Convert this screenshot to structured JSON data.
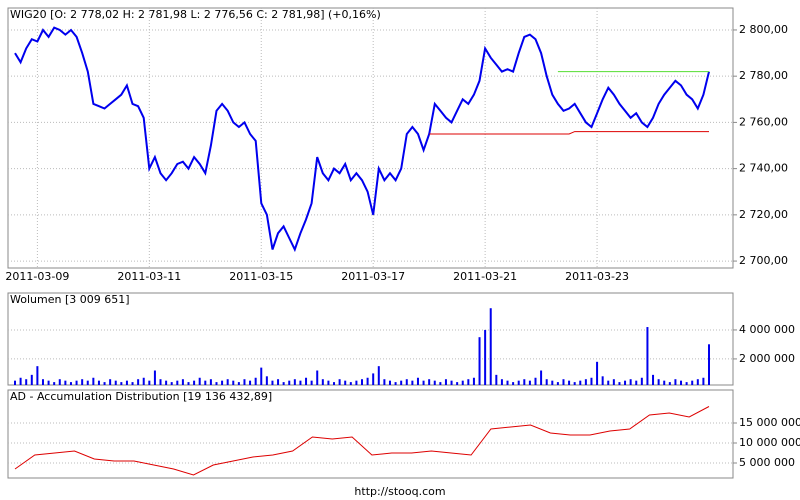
{
  "chart_data": [
    {
      "type": "line",
      "title": "WIG20 [O: 2 778,02  H: 2 781,98  L: 2 776,56  C: 2 781,98] (+0,16%)",
      "categories": [
        null,
        null,
        null,
        null,
        "2011-03-09",
        null,
        null,
        null,
        null,
        null,
        null,
        null,
        null,
        null,
        null,
        null,
        null,
        null,
        null,
        null,
        null,
        null,
        null,
        null,
        "2011-03-11",
        null,
        null,
        null,
        null,
        null,
        null,
        null,
        null,
        null,
        null,
        null,
        null,
        null,
        null,
        null,
        null,
        null,
        null,
        null,
        "2011-03-15",
        null,
        null,
        null,
        null,
        null,
        null,
        null,
        null,
        null,
        null,
        null,
        null,
        null,
        null,
        null,
        null,
        null,
        null,
        null,
        "2011-03-17",
        null,
        null,
        null,
        null,
        null,
        null,
        null,
        null,
        null,
        null,
        null,
        null,
        null,
        null,
        null,
        null,
        null,
        null,
        null,
        "2011-03-21",
        null,
        null,
        null,
        null,
        null,
        null,
        null,
        null,
        null,
        null,
        null,
        null,
        null,
        null,
        null,
        null,
        null,
        null,
        null,
        "2011-03-23",
        null,
        null,
        null,
        null,
        null,
        null,
        null,
        null,
        null,
        null,
        null,
        null,
        null,
        null,
        null,
        null,
        null,
        null,
        null,
        null
      ],
      "series": [
        {
          "color": "#0000ee",
          "values": [
            2790,
            2786,
            2792,
            2796,
            2795,
            2800,
            2797,
            2801,
            2800,
            2798,
            2800,
            2797,
            2790,
            2782,
            2768,
            2767,
            2766,
            2768,
            2770,
            2772,
            2776,
            2768,
            2767,
            2762,
            2740,
            2745,
            2738,
            2735,
            2738,
            2742,
            2743,
            2740,
            2745,
            2742,
            2738,
            2750,
            2765,
            2768,
            2765,
            2760,
            2758,
            2760,
            2755,
            2752,
            2725,
            2720,
            2705,
            2712,
            2715,
            2710,
            2705,
            2712,
            2718,
            2725,
            2745,
            2738,
            2735,
            2740,
            2738,
            2742,
            2735,
            2738,
            2735,
            2730,
            2720,
            2740,
            2735,
            2738,
            2735,
            2740,
            2755,
            2758,
            2755,
            2748,
            2755,
            2768,
            2765,
            2762,
            2760,
            2765,
            2770,
            2768,
            2772,
            2778,
            2792,
            2788,
            2785,
            2782,
            2783,
            2782,
            2790,
            2797,
            2798,
            2796,
            2790,
            2780,
            2772,
            2768,
            2765,
            2766,
            2768,
            2764,
            2760,
            2758,
            2764,
            2770,
            2775,
            2772,
            2768,
            2765,
            2762,
            2764,
            2760,
            2758,
            2762,
            2768,
            2772,
            2775,
            2778,
            2776,
            2772,
            2770,
            2766,
            2772,
            2781.98
          ]
        },
        {
          "color": "#dd0000",
          "values": [
            null,
            null,
            null,
            null,
            null,
            null,
            null,
            null,
            null,
            null,
            null,
            null,
            null,
            null,
            null,
            null,
            null,
            null,
            null,
            null,
            null,
            null,
            null,
            null,
            null,
            null,
            null,
            null,
            null,
            null,
            null,
            null,
            null,
            null,
            null,
            null,
            null,
            null,
            null,
            null,
            null,
            null,
            null,
            null,
            null,
            null,
            null,
            null,
            null,
            null,
            null,
            null,
            null,
            null,
            null,
            null,
            null,
            null,
            null,
            null,
            null,
            null,
            null,
            null,
            null,
            null,
            null,
            null,
            null,
            null,
            null,
            null,
            null,
            null,
            2755,
            2755,
            2755,
            2755,
            2755,
            2755,
            2755,
            2755,
            2755,
            2755,
            2755,
            2755,
            2755,
            2755,
            2755,
            2755,
            2755,
            2755,
            2755,
            2755,
            2755,
            2755,
            2755,
            2755,
            2755,
            2755,
            2756,
            2756,
            2756,
            2756,
            2756,
            2756,
            2756,
            2756,
            2756,
            2756,
            2756,
            2756,
            2756,
            2756,
            2756,
            2756,
            2756,
            2756,
            2756,
            2756,
            2756,
            2756,
            2756,
            2756,
            2756
          ]
        },
        {
          "color": "#55dd33",
          "values": [
            null,
            null,
            null,
            null,
            null,
            null,
            null,
            null,
            null,
            null,
            null,
            null,
            null,
            null,
            null,
            null,
            null,
            null,
            null,
            null,
            null,
            null,
            null,
            null,
            null,
            null,
            null,
            null,
            null,
            null,
            null,
            null,
            null,
            null,
            null,
            null,
            null,
            null,
            null,
            null,
            null,
            null,
            null,
            null,
            null,
            null,
            null,
            null,
            null,
            null,
            null,
            null,
            null,
            null,
            null,
            null,
            null,
            null,
            null,
            null,
            null,
            null,
            null,
            null,
            null,
            null,
            null,
            null,
            null,
            null,
            null,
            null,
            null,
            null,
            null,
            null,
            null,
            null,
            null,
            null,
            null,
            null,
            null,
            null,
            null,
            null,
            null,
            null,
            null,
            null,
            null,
            null,
            null,
            null,
            null,
            null,
            null,
            2782,
            2782,
            2782,
            2782,
            2782,
            2782,
            2782,
            2782,
            2782,
            2782,
            2782,
            2782,
            2782,
            2782,
            2782,
            2782,
            2782,
            2782,
            2782,
            2782,
            2782,
            2782,
            2782,
            2782,
            2782,
            2782,
            2782,
            2782
          ]
        }
      ],
      "ylim": [
        2697,
        2809.5
      ],
      "yticks": [
        {
          "value": 2700,
          "label": "2 700,00"
        },
        {
          "value": 2720,
          "label": "2 720,00"
        },
        {
          "value": 2740,
          "label": "2 740,00"
        },
        {
          "value": 2760,
          "label": "2 760,00"
        },
        {
          "value": 2780,
          "label": "2 780,00"
        },
        {
          "value": 2800,
          "label": "2 800,00"
        }
      ],
      "grid": true
    },
    {
      "type": "bar",
      "title": "Wolumen [3 009 651]",
      "color": "#0000ee",
      "values": [
        500000,
        700000,
        600000,
        900000,
        1500000,
        600000,
        500000,
        400000,
        600000,
        500000,
        400000,
        500000,
        600000,
        500000,
        700000,
        500000,
        400000,
        600000,
        500000,
        400000,
        500000,
        400000,
        600000,
        700000,
        500000,
        1200000,
        600000,
        500000,
        400000,
        500000,
        600000,
        400000,
        500000,
        700000,
        500000,
        600000,
        400000,
        500000,
        600000,
        500000,
        400000,
        600000,
        500000,
        700000,
        1400000,
        800000,
        500000,
        600000,
        400000,
        500000,
        600000,
        500000,
        700000,
        500000,
        1200000,
        600000,
        500000,
        400000,
        600000,
        500000,
        400000,
        500000,
        600000,
        700000,
        1000000,
        1500000,
        600000,
        500000,
        400000,
        500000,
        600000,
        500000,
        700000,
        500000,
        600000,
        500000,
        400000,
        600000,
        500000,
        400000,
        500000,
        600000,
        700000,
        3500000,
        4000000,
        5500000,
        900000,
        600000,
        500000,
        400000,
        500000,
        600000,
        500000,
        700000,
        1200000,
        600000,
        500000,
        400000,
        600000,
        500000,
        400000,
        500000,
        600000,
        700000,
        1800000,
        800000,
        500000,
        600000,
        400000,
        500000,
        600000,
        500000,
        700000,
        4200000,
        900000,
        600000,
        500000,
        400000,
        600000,
        500000,
        400000,
        500000,
        600000,
        700000,
        3009651
      ],
      "ylim": [
        200000,
        6550000
      ],
      "yticks": [
        {
          "value": 2000000,
          "label": "2 000 000"
        },
        {
          "value": 4000000,
          "label": "4 000 000"
        }
      ],
      "grid": true
    },
    {
      "type": "line",
      "title": "AD - Accumulation Distribution [19 136 432,89]",
      "series": [
        {
          "color": "#dd0000",
          "values": [
            3500000,
            7000000,
            7500000,
            8000000,
            6000000,
            5500000,
            5500000,
            4500000,
            3500000,
            2000000,
            4500000,
            5500000,
            6500000,
            7000000,
            8000000,
            11500000,
            11000000,
            11500000,
            7000000,
            7500000,
            7500000,
            8000000,
            7500000,
            7000000,
            13500000,
            14000000,
            14500000,
            12500000,
            12000000,
            12000000,
            13000000,
            13500000,
            17000000,
            17500000,
            16500000,
            19136432.89
          ]
        }
      ],
      "ylim": [
        1250000,
        23250000
      ],
      "yticks": [
        {
          "value": 5000000,
          "label": "5 000 000"
        },
        {
          "value": 10000000,
          "label": "10 000 000"
        },
        {
          "value": 15000000,
          "label": "15 000 000"
        }
      ],
      "grid": true
    }
  ],
  "footer": "http://stooq.com"
}
